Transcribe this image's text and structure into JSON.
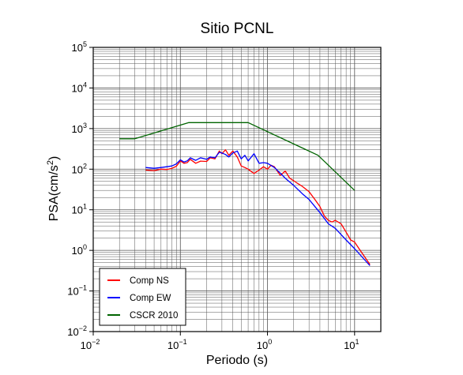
{
  "chart_data": {
    "type": "line",
    "title": "Sitio PCNL",
    "xlabel": "Periodo (s)",
    "ylabel_base": "PSA(cm/s",
    "ylabel_sup": "2",
    "ylabel_end": ")",
    "xscale": "log",
    "yscale": "log",
    "xlim": [
      0.01,
      20
    ],
    "ylim": [
      0.01,
      100000
    ],
    "grid": true,
    "legend_position": "bottom-left",
    "x_ticks": [
      {
        "base": "10",
        "exp": "−2",
        "value": 0.01
      },
      {
        "base": "10",
        "exp": "−1",
        "value": 0.1
      },
      {
        "base": "10",
        "exp": "0",
        "value": 1
      },
      {
        "base": "10",
        "exp": "1",
        "value": 10
      }
    ],
    "y_ticks": [
      {
        "base": "10",
        "exp": "−2",
        "value": 0.01
      },
      {
        "base": "10",
        "exp": "−1",
        "value": 0.1
      },
      {
        "base": "10",
        "exp": "0",
        "value": 1
      },
      {
        "base": "10",
        "exp": "1",
        "value": 10
      },
      {
        "base": "10",
        "exp": "2",
        "value": 100
      },
      {
        "base": "10",
        "exp": "3",
        "value": 1000
      },
      {
        "base": "10",
        "exp": "4",
        "value": 10000
      },
      {
        "base": "10",
        "exp": "5",
        "value": 100000
      }
    ],
    "series": [
      {
        "name": "Comp NS",
        "color": "#ff0000",
        "x": [
          0.04,
          0.05,
          0.06,
          0.07,
          0.08,
          0.09,
          0.1,
          0.11,
          0.12,
          0.13,
          0.15,
          0.17,
          0.2,
          0.22,
          0.25,
          0.28,
          0.3,
          0.33,
          0.36,
          0.4,
          0.45,
          0.5,
          0.55,
          0.6,
          0.7,
          0.8,
          0.9,
          1.0,
          1.1,
          1.2,
          1.4,
          1.6,
          1.8,
          2.0,
          2.2,
          2.5,
          3.0,
          3.5,
          4.0,
          4.5,
          5.0,
          5.5,
          6.0,
          7.0,
          8.0,
          9.0,
          10.0,
          12.0,
          15.0
        ],
        "y": [
          95,
          92,
          100,
          98,
          105,
          118,
          160,
          140,
          145,
          175,
          140,
          158,
          155,
          190,
          180,
          280,
          240,
          300,
          220,
          280,
          200,
          120,
          110,
          100,
          78,
          95,
          115,
          100,
          125,
          115,
          70,
          90,
          60,
          52,
          45,
          38,
          28,
          18,
          12,
          7,
          5.5,
          5.0,
          5.5,
          4.5,
          2.8,
          1.8,
          1.6,
          0.9,
          0.45
        ]
      },
      {
        "name": "Comp EW",
        "color": "#0000ff",
        "x": [
          0.04,
          0.05,
          0.06,
          0.07,
          0.08,
          0.09,
          0.1,
          0.11,
          0.12,
          0.13,
          0.15,
          0.17,
          0.2,
          0.22,
          0.25,
          0.28,
          0.3,
          0.33,
          0.36,
          0.4,
          0.45,
          0.5,
          0.55,
          0.6,
          0.7,
          0.8,
          0.9,
          1.0,
          1.2,
          1.4,
          1.6,
          2.0,
          2.5,
          3.0,
          3.5,
          4.0,
          5.0,
          6.0,
          8.0,
          10.0,
          15.0
        ],
        "y": [
          110,
          105,
          110,
          115,
          120,
          135,
          170,
          150,
          160,
          190,
          165,
          190,
          175,
          200,
          190,
          260,
          250,
          230,
          200,
          250,
          280,
          180,
          220,
          160,
          240,
          140,
          145,
          140,
          110,
          80,
          60,
          40,
          25,
          18,
          12,
          8.5,
          4.5,
          3.5,
          1.8,
          1.1,
          0.42
        ]
      },
      {
        "name": "CSCR 2010",
        "color": "#006400",
        "x": [
          0.02,
          0.03,
          0.125,
          0.6,
          3.8,
          10.0
        ],
        "y": [
          560,
          560,
          1400,
          1400,
          220,
          30
        ]
      }
    ]
  }
}
